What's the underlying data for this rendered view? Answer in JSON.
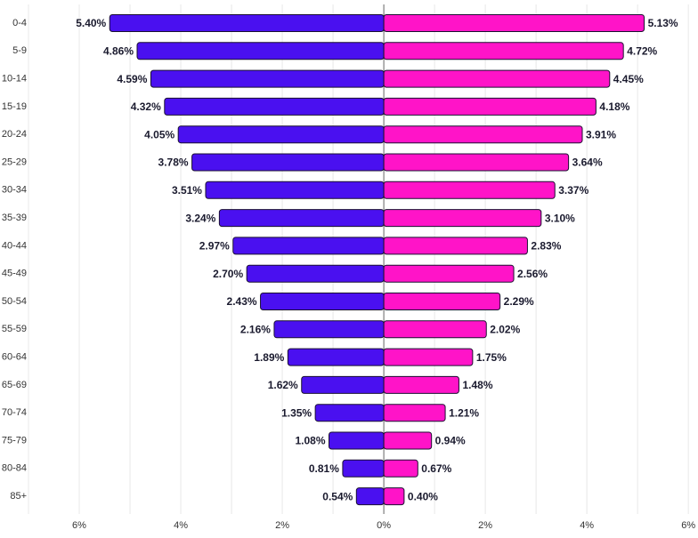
{
  "chart_data": {
    "type": "pyramid",
    "categories": [
      "0-4",
      "5-9",
      "10-14",
      "15-19",
      "20-24",
      "25-29",
      "30-34",
      "35-39",
      "40-44",
      "45-49",
      "50-54",
      "55-59",
      "60-64",
      "65-69",
      "70-74",
      "75-79",
      "80-84",
      "85+"
    ],
    "series": [
      {
        "color": "#4a10f0",
        "side": "left",
        "values": [
          5.4,
          4.86,
          4.59,
          4.32,
          4.05,
          3.78,
          3.51,
          3.24,
          2.97,
          2.7,
          2.43,
          2.16,
          1.89,
          1.62,
          1.35,
          1.08,
          0.81,
          0.54
        ],
        "value_labels": [
          "5.40%",
          "4.86%",
          "4.59%",
          "4.32%",
          "4.05%",
          "3.78%",
          "3.51%",
          "3.24%",
          "2.97%",
          "2.70%",
          "2.43%",
          "2.16%",
          "1.89%",
          "1.62%",
          "1.35%",
          "1.08%",
          "0.81%",
          "0.54%"
        ]
      },
      {
        "color": "#ff14c8",
        "side": "right",
        "values": [
          5.13,
          4.72,
          4.45,
          4.18,
          3.91,
          3.64,
          3.37,
          3.1,
          2.83,
          2.56,
          2.29,
          2.02,
          1.75,
          1.48,
          1.21,
          0.94,
          0.67,
          0.4
        ],
        "value_labels": [
          "5.13%",
          "4.72%",
          "4.45%",
          "4.18%",
          "3.91%",
          "3.64%",
          "3.37%",
          "3.10%",
          "2.83%",
          "2.56%",
          "2.29%",
          "2.02%",
          "1.75%",
          "1.48%",
          "1.21%",
          "0.94%",
          "0.67%",
          "0.40%"
        ]
      }
    ],
    "xlim": [
      -7,
      6.19
    ],
    "xticks": [
      {
        "value": -6,
        "label": "6%"
      },
      {
        "value": -4,
        "label": "4%"
      },
      {
        "value": -2,
        "label": "2%"
      },
      {
        "value": 0,
        "label": "0%"
      },
      {
        "value": 2,
        "label": "2%"
      },
      {
        "value": 4,
        "label": "4%"
      },
      {
        "value": 6,
        "label": "6%"
      }
    ],
    "minor_xticks": [
      -7,
      -5,
      -3,
      -1,
      1,
      3,
      5
    ],
    "grid": true
  }
}
